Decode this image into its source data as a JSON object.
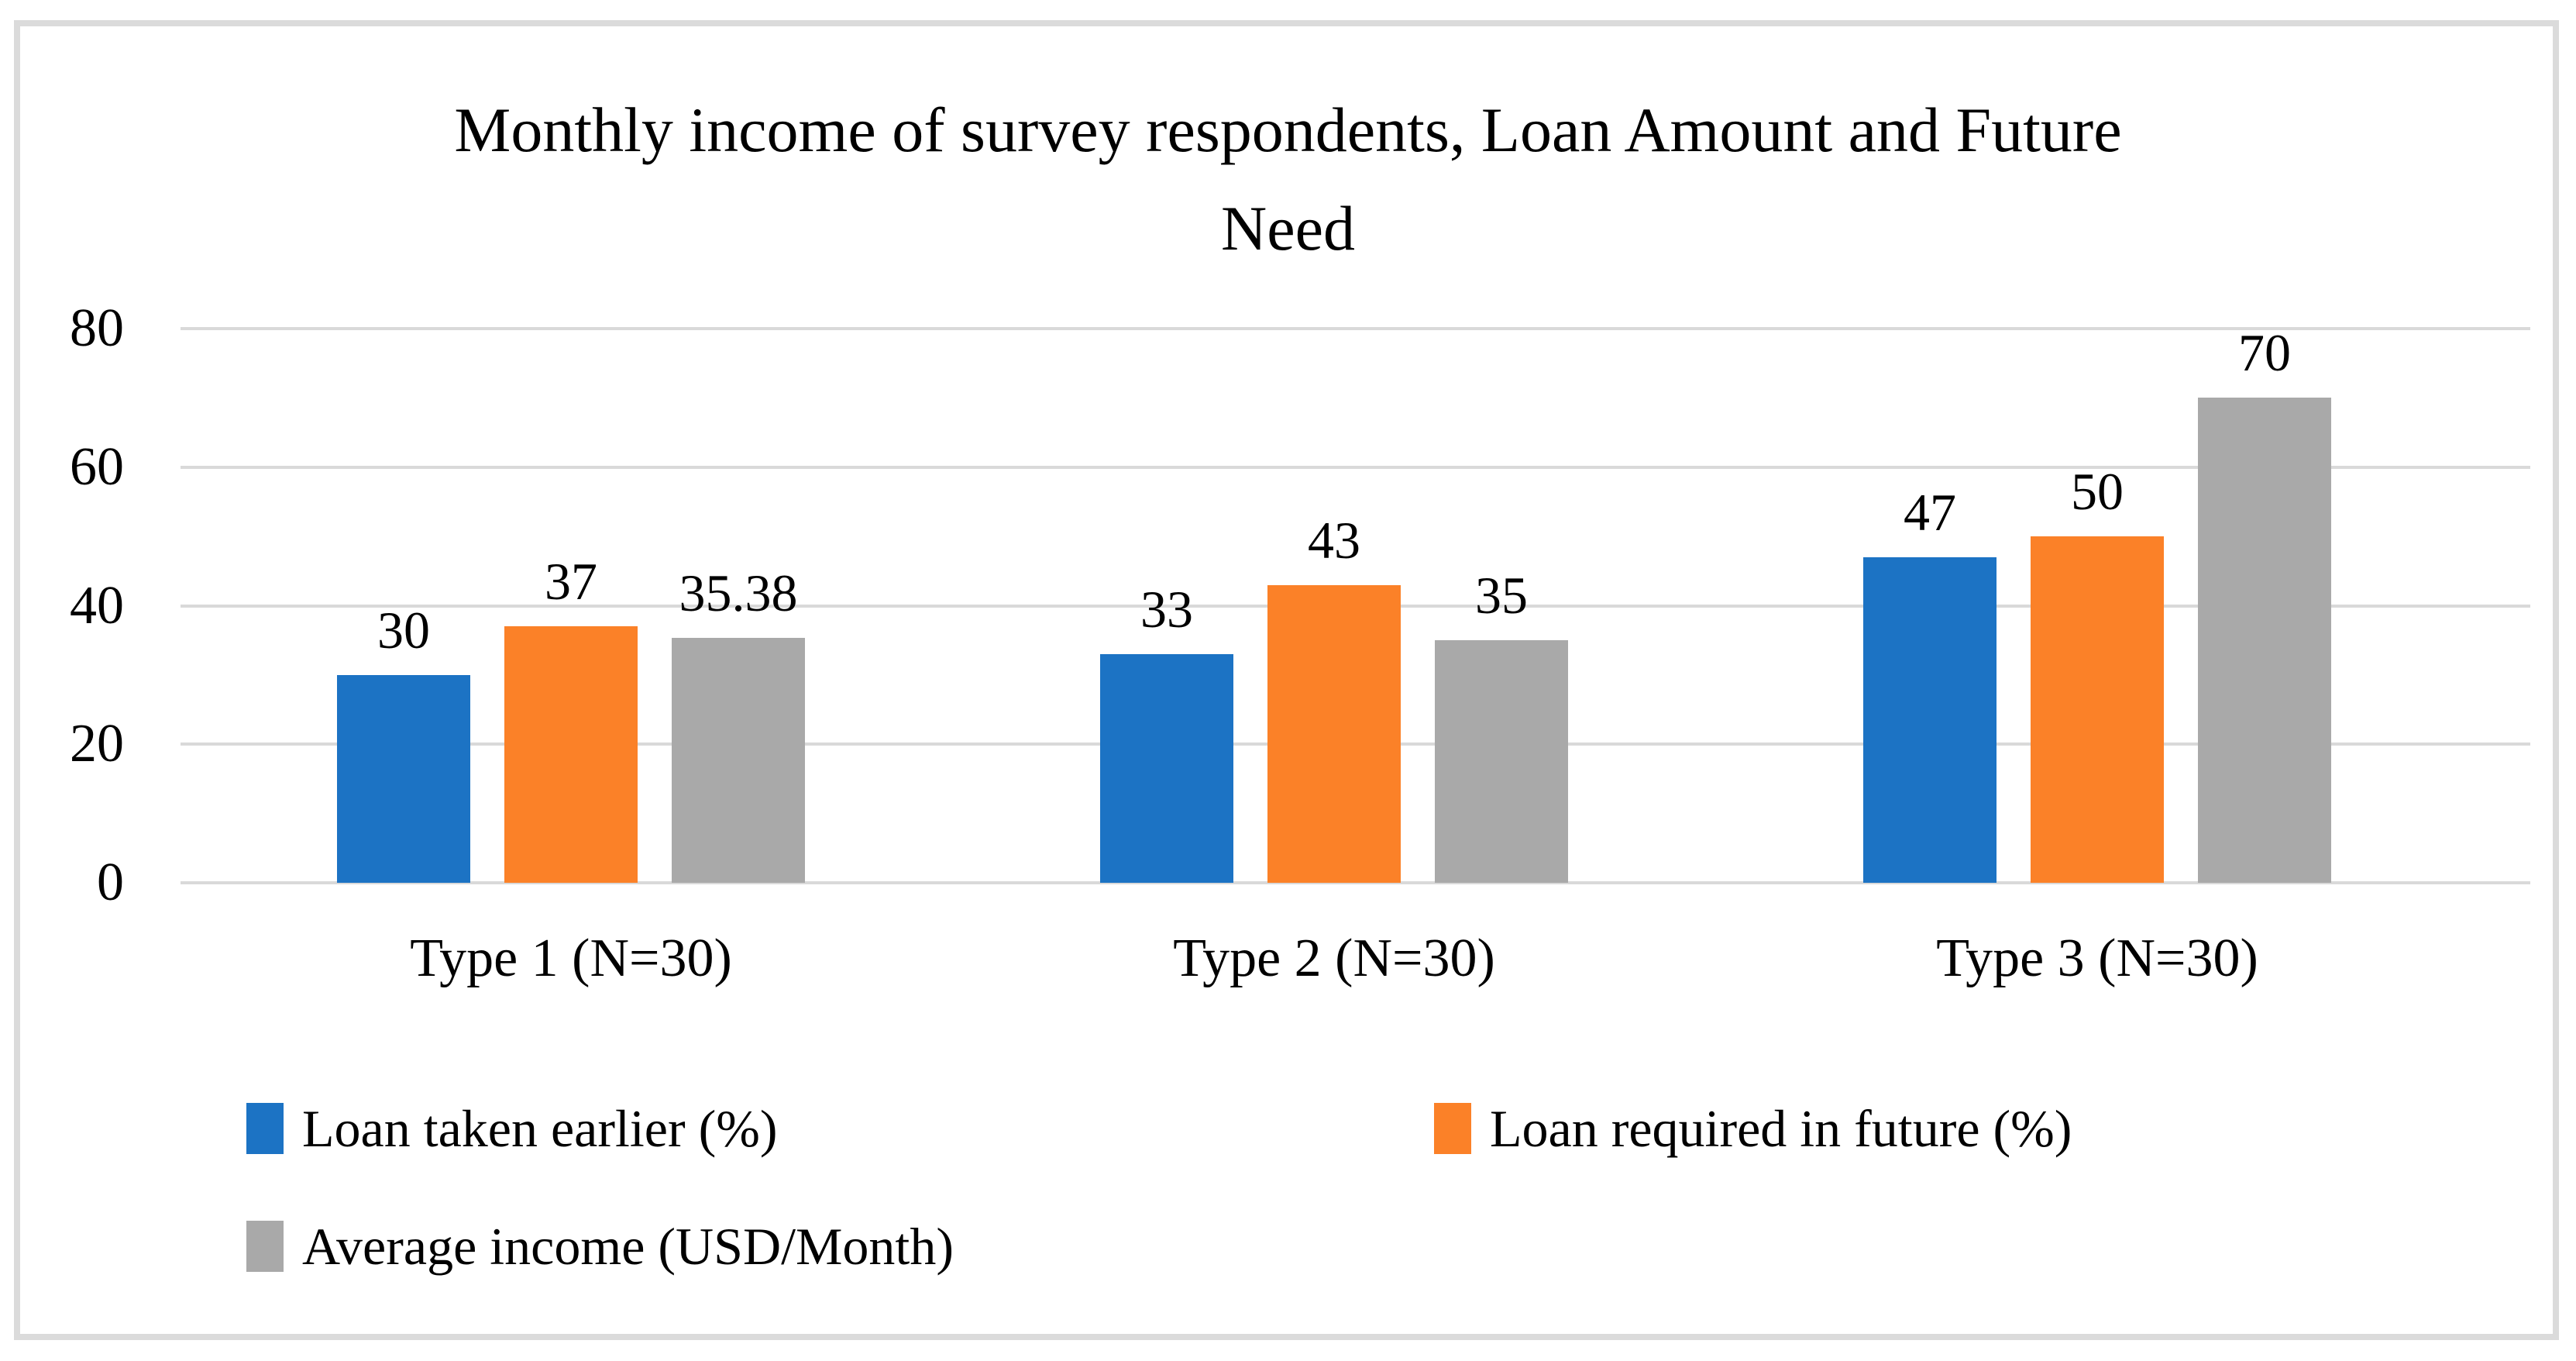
{
  "chart_data": {
    "type": "bar",
    "title": "Monthly income of survey respondents, Loan Amount and Future Need",
    "title_lines": [
      "Monthly income of survey respondents, Loan Amount and Future",
      "Need"
    ],
    "categories": [
      "Type 1 (N=30)",
      "Type 2 (N=30)",
      "Type 3 (N=30)"
    ],
    "series": [
      {
        "name": "Loan taken earlier (%)",
        "color": "#1C73C4",
        "values": [
          30,
          33,
          47
        ]
      },
      {
        "name": "Loan required in future (%)",
        "color": "#FB8128",
        "values": [
          37,
          43,
          50
        ]
      },
      {
        "name": "Average income (USD/Month)",
        "color": "#A9A9A9",
        "values": [
          35.38,
          35,
          70
        ]
      }
    ],
    "ylim": [
      0,
      80
    ],
    "yticks": [
      0,
      20,
      40,
      60,
      80
    ],
    "grid": true,
    "grid_color": "#D9D9D9",
    "frame_color": "#DBDBDB",
    "background": "#FFFFFF",
    "text_color": "#000000",
    "legend_position": "bottom",
    "value_labels_shown": true
  }
}
